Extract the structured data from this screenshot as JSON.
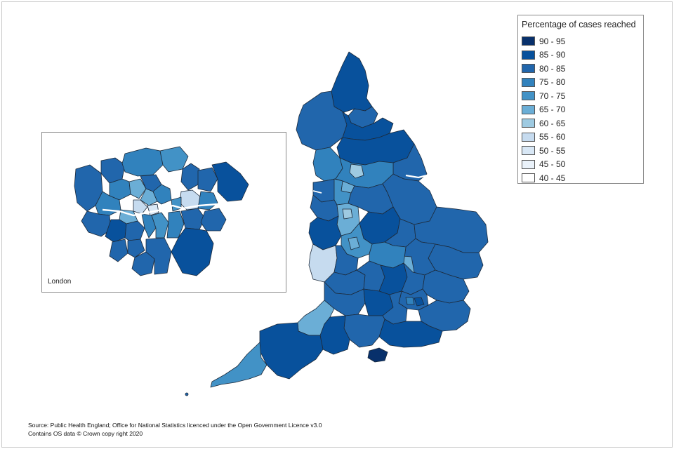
{
  "legend": {
    "title": "Percentage of cases reached",
    "items": [
      {
        "label": "90 - 95",
        "color": "#08306b"
      },
      {
        "label": "85 - 90",
        "color": "#08519c"
      },
      {
        "label": "80 - 85",
        "color": "#2166ac"
      },
      {
        "label": "75 - 80",
        "color": "#3182bd"
      },
      {
        "label": "70 - 75",
        "color": "#4292c6"
      },
      {
        "label": "65 - 70",
        "color": "#6baed6"
      },
      {
        "label": "60 - 65",
        "color": "#9ecae1"
      },
      {
        "label": "55 - 60",
        "color": "#c6dbef"
      },
      {
        "label": "50 - 55",
        "color": "#d8e7f5"
      },
      {
        "label": "45 - 50",
        "color": "#eaf2fa"
      },
      {
        "label": "40 - 45",
        "color": "#ffffff"
      }
    ]
  },
  "inset": {
    "label": "London"
  },
  "source": {
    "line1": "Source: Public Health England; Office for National Statistics licenced under the Open Government Licence v3.0",
    "line2": "Contains OS data © Crown copy right 2020"
  }
}
